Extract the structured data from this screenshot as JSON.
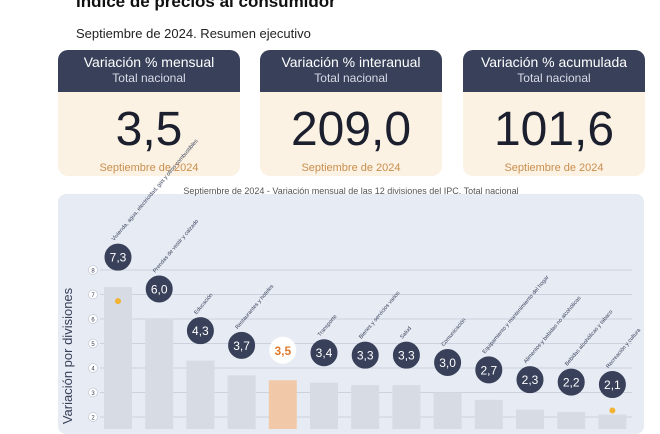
{
  "page": {
    "title": "Índice de precios al consumidor",
    "subtitle": "Septiembre de 2024. Resumen ejecutivo"
  },
  "cards": [
    {
      "title": "Variación % mensual",
      "sub": "Total nacional",
      "value": "3,5",
      "date": "Septiembre de 2024"
    },
    {
      "title": "Variación % interanual",
      "sub": "Total nacional",
      "value": "209,0",
      "date": "Septiembre de 2024"
    },
    {
      "title": "Variación % acumulada",
      "sub": "Total nacional",
      "value": "101,6",
      "date": "Septiembre de 2024"
    }
  ],
  "chart_caption": "Septiembre de 2024 - Variación mensual de las 12 divisiones del IPC. Total nacional",
  "colors": {
    "bar": "#d7dbe3",
    "highlight_bar": "#f2c9a8",
    "badge": "#38405a",
    "highlight_label": "#e07a2c",
    "card_head": "#38405a",
    "card_body": "#fbf2e3"
  },
  "chart_data": {
    "type": "bar",
    "ylabel": "Variación por divisiones",
    "ylim": [
      2,
      8
    ],
    "yticks": [
      2,
      3,
      4,
      5,
      6,
      7,
      8
    ],
    "grid": true,
    "categories": [
      "Vivienda, agua, electricidad, gas y otros combustibles",
      "Prendas de vestir y calzado",
      "Educación",
      "Restaurantes y hoteles",
      "",
      "Transporte",
      "Bienes y servicios varios",
      "Salud",
      "Comunicación",
      "Equipamiento y mantenimiento del hogar",
      "Alimentos y bebidas no alcohólicas",
      "Bebidas alcohólicas y tabaco",
      "Recreación y cultura"
    ],
    "values": [
      7.3,
      6.0,
      4.3,
      3.7,
      3.5,
      3.4,
      3.3,
      3.3,
      3.0,
      2.7,
      2.3,
      2.2,
      2.1
    ],
    "value_labels": [
      "7,3",
      "6,0",
      "4,3",
      "3,7",
      "3,5",
      "3,4",
      "3,3",
      "3,3",
      "3,0",
      "2,7",
      "2,3",
      "2,2",
      "2,1"
    ],
    "highlight_index": 4,
    "icons": [
      "house-icon",
      "shirt-icon",
      "book-icon",
      "plate-icon",
      "basket-icon",
      "car-icon",
      "tools-icon",
      "first-aid-icon",
      "phone-icon",
      "sofa-icon",
      "food-icon",
      "bottle-icon",
      "culture-icon"
    ]
  }
}
